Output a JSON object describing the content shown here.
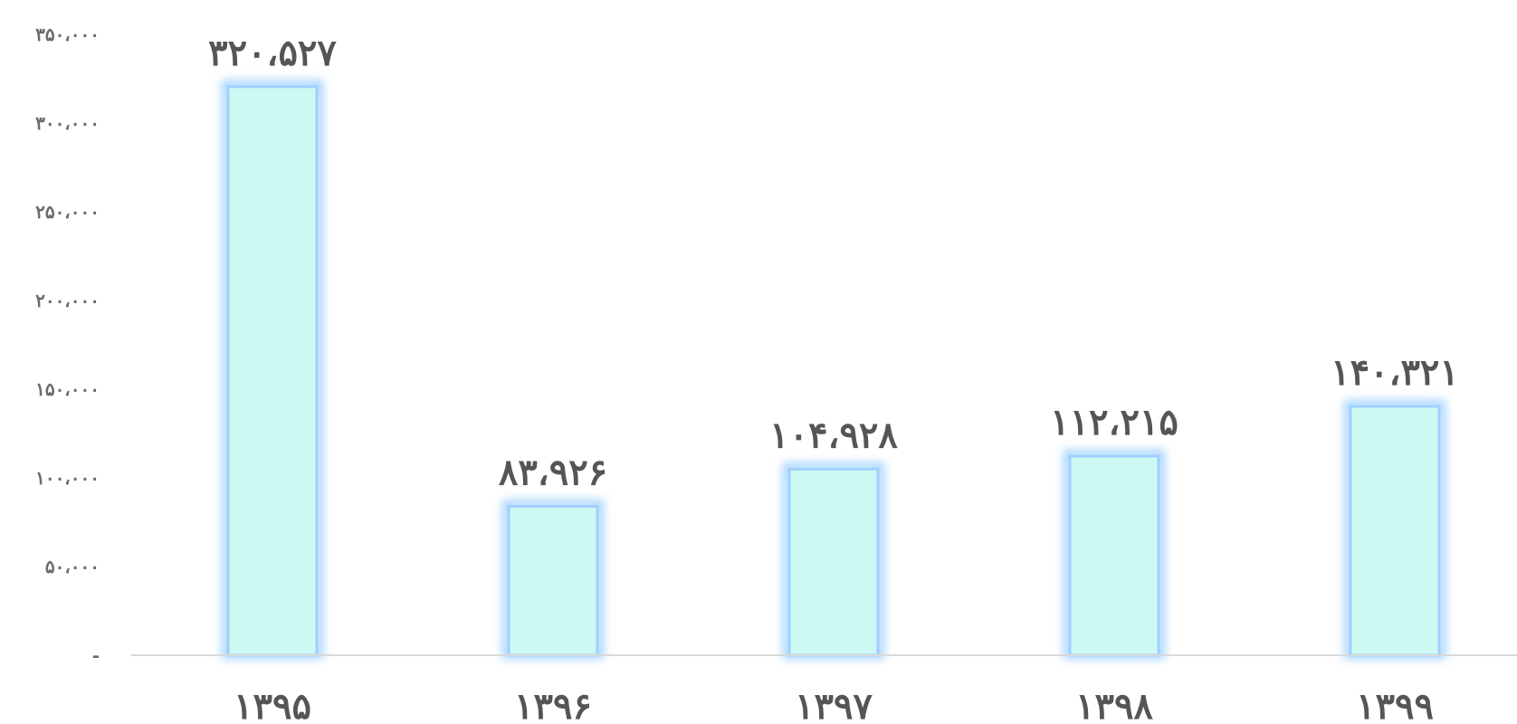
{
  "chart_data": {
    "type": "bar",
    "title": "",
    "xlabel": "",
    "ylabel": "",
    "categories": [
      "۱۳۹۵",
      "۱۳۹۶",
      "۱۳۹۷",
      "۱۳۹۸",
      "۱۳۹۹"
    ],
    "values": [
      320527,
      83926,
      104928,
      112215,
      140321
    ],
    "data_labels": [
      "۳۲۰،۵۲۷",
      "۸۳،۹۲۶",
      "۱۰۴،۹۲۸",
      "۱۱۲،۲۱۵",
      "۱۴۰،۳۲۱"
    ],
    "ylim": [
      0,
      350000
    ],
    "yticks": [
      0,
      50000,
      100000,
      150000,
      200000,
      250000,
      300000,
      350000
    ],
    "ytick_labels": [
      "-",
      "۵۰،۰۰۰",
      "۱۰۰،۰۰۰",
      "۱۵۰،۰۰۰",
      "۲۰۰،۰۰۰",
      "۲۵۰،۰۰۰",
      "۳۰۰،۰۰۰",
      "۳۵۰،۰۰۰"
    ],
    "grid": false,
    "legend": "none",
    "colors": {
      "bar_fill": "#ccf9f2",
      "bar_glow": "#9fd0ff",
      "axis_line": "#d9d9d9",
      "text": "#555555"
    }
  }
}
